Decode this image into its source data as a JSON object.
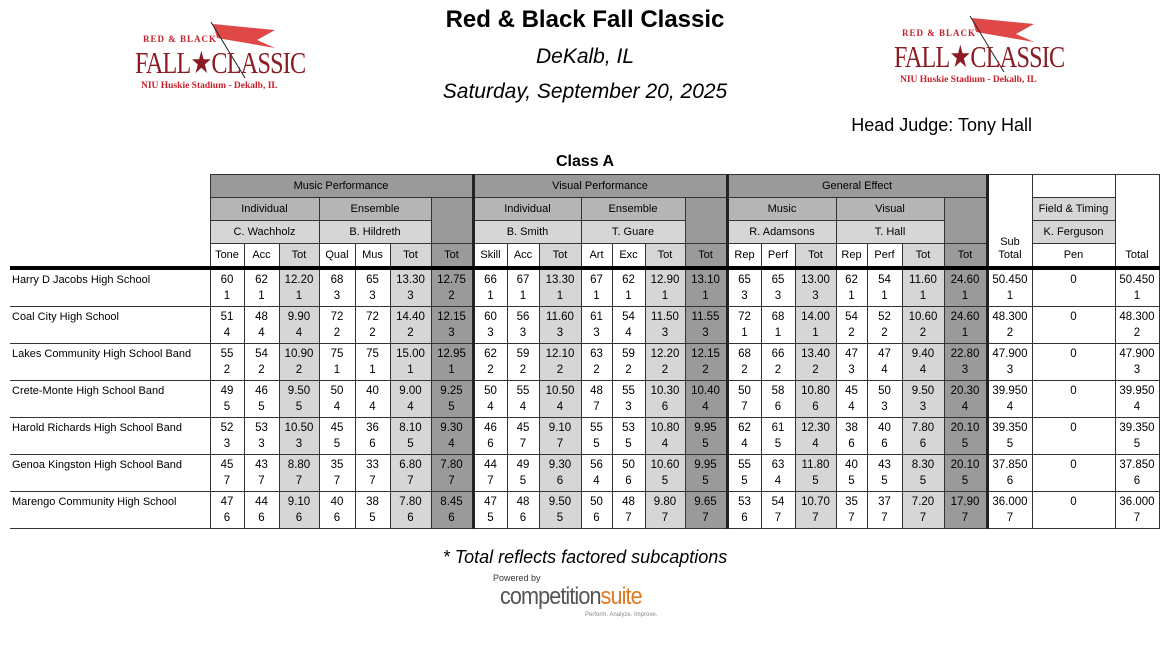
{
  "header": {
    "title": "Red & Black Fall Classic",
    "location": "DeKalb, IL",
    "date": "Saturday, September 20, 2025",
    "head_judge": "Head Judge: Tony Hall"
  },
  "logo": {
    "line1": "RED & BLACK",
    "line2": "FALL★CLASSIC",
    "line3": "NIU Huskie Stadium - Dekalb, IL",
    "colors": {
      "red": "#c8202a",
      "dark": "#8a1c22"
    }
  },
  "class_title": "Class A",
  "table": {
    "categories": [
      "Music Performance",
      "Visual Performance",
      "General Effect"
    ],
    "subcategories": [
      "Individual",
      "Ensemble",
      "Individual",
      "Ensemble",
      "Music",
      "Visual"
    ],
    "judges": [
      "C. Wachholz",
      "B. Hildreth",
      "B. Smith",
      "T. Guare",
      "R. Adamsons",
      "T. Hall"
    ],
    "field_timing": "Field & Timing",
    "field_judge": "K. Ferguson",
    "col_headers": [
      "Tone",
      "Acc",
      "Tot",
      "Qual",
      "Mus",
      "Tot",
      "Tot",
      "Skill",
      "Acc",
      "Tot",
      "Art",
      "Exc",
      "Tot",
      "Tot",
      "Rep",
      "Perf",
      "Tot",
      "Rep",
      "Perf",
      "Tot",
      "Tot"
    ],
    "subtotal_header": "Sub Total",
    "pen_header": "Pen",
    "total_header": "Total",
    "rows": [
      {
        "school": "Harry D Jacobs High School",
        "scores": [
          [
            "60",
            "1"
          ],
          [
            "62",
            "1"
          ],
          [
            "12.20",
            "1"
          ],
          [
            "68",
            "3"
          ],
          [
            "65",
            "3"
          ],
          [
            "13.30",
            "3"
          ],
          [
            "12.75",
            "2"
          ],
          [
            "66",
            "1"
          ],
          [
            "67",
            "1"
          ],
          [
            "13.30",
            "1"
          ],
          [
            "67",
            "1"
          ],
          [
            "62",
            "1"
          ],
          [
            "12.90",
            "1"
          ],
          [
            "13.10",
            "1"
          ],
          [
            "65",
            "3"
          ],
          [
            "65",
            "3"
          ],
          [
            "13.00",
            "3"
          ],
          [
            "62",
            "1"
          ],
          [
            "54",
            "1"
          ],
          [
            "11.60",
            "1"
          ],
          [
            "24.60",
            "1"
          ]
        ],
        "subtotal": [
          "50.450",
          "1"
        ],
        "pen": "0",
        "total": [
          "50.450",
          "1"
        ]
      },
      {
        "school": "Coal City High School",
        "scores": [
          [
            "51",
            "4"
          ],
          [
            "48",
            "4"
          ],
          [
            "9.90",
            "4"
          ],
          [
            "72",
            "2"
          ],
          [
            "72",
            "2"
          ],
          [
            "14.40",
            "2"
          ],
          [
            "12.15",
            "3"
          ],
          [
            "60",
            "3"
          ],
          [
            "56",
            "3"
          ],
          [
            "11.60",
            "3"
          ],
          [
            "61",
            "3"
          ],
          [
            "54",
            "4"
          ],
          [
            "11.50",
            "3"
          ],
          [
            "11.55",
            "3"
          ],
          [
            "72",
            "1"
          ],
          [
            "68",
            "1"
          ],
          [
            "14.00",
            "1"
          ],
          [
            "54",
            "2"
          ],
          [
            "52",
            "2"
          ],
          [
            "10.60",
            "2"
          ],
          [
            "24.60",
            "1"
          ]
        ],
        "subtotal": [
          "48.300",
          "2"
        ],
        "pen": "0",
        "total": [
          "48.300",
          "2"
        ]
      },
      {
        "school": "Lakes Community High School Band",
        "scores": [
          [
            "55",
            "2"
          ],
          [
            "54",
            "2"
          ],
          [
            "10.90",
            "2"
          ],
          [
            "75",
            "1"
          ],
          [
            "75",
            "1"
          ],
          [
            "15.00",
            "1"
          ],
          [
            "12.95",
            "1"
          ],
          [
            "62",
            "2"
          ],
          [
            "59",
            "2"
          ],
          [
            "12.10",
            "2"
          ],
          [
            "63",
            "2"
          ],
          [
            "59",
            "2"
          ],
          [
            "12.20",
            "2"
          ],
          [
            "12.15",
            "2"
          ],
          [
            "68",
            "2"
          ],
          [
            "66",
            "2"
          ],
          [
            "13.40",
            "2"
          ],
          [
            "47",
            "3"
          ],
          [
            "47",
            "4"
          ],
          [
            "9.40",
            "4"
          ],
          [
            "22.80",
            "3"
          ]
        ],
        "subtotal": [
          "47.900",
          "3"
        ],
        "pen": "0",
        "total": [
          "47.900",
          "3"
        ]
      },
      {
        "school": "Crete-Monte High School Band",
        "scores": [
          [
            "49",
            "5"
          ],
          [
            "46",
            "5"
          ],
          [
            "9.50",
            "5"
          ],
          [
            "50",
            "4"
          ],
          [
            "40",
            "4"
          ],
          [
            "9.00",
            "4"
          ],
          [
            "9.25",
            "5"
          ],
          [
            "50",
            "4"
          ],
          [
            "55",
            "4"
          ],
          [
            "10.50",
            "4"
          ],
          [
            "48",
            "7"
          ],
          [
            "55",
            "3"
          ],
          [
            "10.30",
            "6"
          ],
          [
            "10.40",
            "4"
          ],
          [
            "50",
            "7"
          ],
          [
            "58",
            "6"
          ],
          [
            "10.80",
            "6"
          ],
          [
            "45",
            "4"
          ],
          [
            "50",
            "3"
          ],
          [
            "9.50",
            "3"
          ],
          [
            "20.30",
            "4"
          ]
        ],
        "subtotal": [
          "39.950",
          "4"
        ],
        "pen": "0",
        "total": [
          "39.950",
          "4"
        ]
      },
      {
        "school": "Harold Richards High School Band",
        "scores": [
          [
            "52",
            "3"
          ],
          [
            "53",
            "3"
          ],
          [
            "10.50",
            "3"
          ],
          [
            "45",
            "5"
          ],
          [
            "36",
            "6"
          ],
          [
            "8.10",
            "5"
          ],
          [
            "9.30",
            "4"
          ],
          [
            "46",
            "6"
          ],
          [
            "45",
            "7"
          ],
          [
            "9.10",
            "7"
          ],
          [
            "55",
            "5"
          ],
          [
            "53",
            "5"
          ],
          [
            "10.80",
            "4"
          ],
          [
            "9.95",
            "5"
          ],
          [
            "62",
            "4"
          ],
          [
            "61",
            "5"
          ],
          [
            "12.30",
            "4"
          ],
          [
            "38",
            "6"
          ],
          [
            "40",
            "6"
          ],
          [
            "7.80",
            "6"
          ],
          [
            "20.10",
            "5"
          ]
        ],
        "subtotal": [
          "39.350",
          "5"
        ],
        "pen": "0",
        "total": [
          "39.350",
          "5"
        ]
      },
      {
        "school": "Genoa Kingston High School Band",
        "scores": [
          [
            "45",
            "7"
          ],
          [
            "43",
            "7"
          ],
          [
            "8.80",
            "7"
          ],
          [
            "35",
            "7"
          ],
          [
            "33",
            "7"
          ],
          [
            "6.80",
            "7"
          ],
          [
            "7.80",
            "7"
          ],
          [
            "44",
            "7"
          ],
          [
            "49",
            "5"
          ],
          [
            "9.30",
            "6"
          ],
          [
            "56",
            "4"
          ],
          [
            "50",
            "6"
          ],
          [
            "10.60",
            "5"
          ],
          [
            "9.95",
            "5"
          ],
          [
            "55",
            "5"
          ],
          [
            "63",
            "4"
          ],
          [
            "11.80",
            "5"
          ],
          [
            "40",
            "5"
          ],
          [
            "43",
            "5"
          ],
          [
            "8.30",
            "5"
          ],
          [
            "20.10",
            "5"
          ]
        ],
        "subtotal": [
          "37.850",
          "6"
        ],
        "pen": "0",
        "total": [
          "37.850",
          "6"
        ]
      },
      {
        "school": "Marengo Community High School",
        "scores": [
          [
            "47",
            "6"
          ],
          [
            "44",
            "6"
          ],
          [
            "9.10",
            "6"
          ],
          [
            "40",
            "6"
          ],
          [
            "38",
            "5"
          ],
          [
            "7.80",
            "6"
          ],
          [
            "8.45",
            "6"
          ],
          [
            "47",
            "5"
          ],
          [
            "48",
            "6"
          ],
          [
            "9.50",
            "5"
          ],
          [
            "50",
            "6"
          ],
          [
            "48",
            "7"
          ],
          [
            "9.80",
            "7"
          ],
          [
            "9.65",
            "7"
          ],
          [
            "53",
            "6"
          ],
          [
            "54",
            "7"
          ],
          [
            "10.70",
            "7"
          ],
          [
            "35",
            "7"
          ],
          [
            "37",
            "7"
          ],
          [
            "7.20",
            "7"
          ],
          [
            "17.90",
            "7"
          ]
        ],
        "subtotal": [
          "36.000",
          "7"
        ],
        "pen": "0",
        "total": [
          "36.000",
          "7"
        ]
      }
    ]
  },
  "footnote": "* Total reflects factored subcaptions",
  "branding": {
    "powered_by": "Powered by",
    "name_a": "competition",
    "name_b": "suite",
    "tagline": "Perform. Analyze. Improve."
  }
}
